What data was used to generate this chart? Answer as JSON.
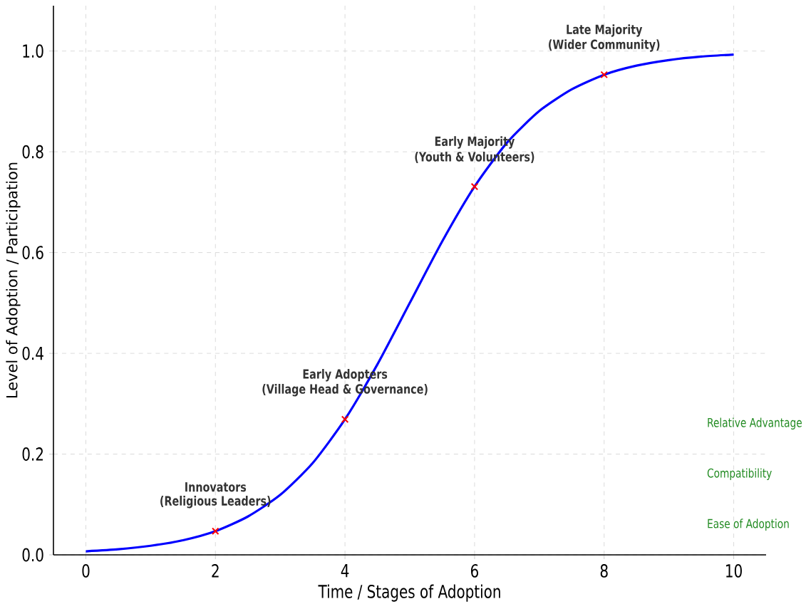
{
  "chart_data": {
    "type": "line",
    "xlabel": "Time / Stages of Adoption",
    "ylabel": "Level of Adoption / Participation",
    "xlim": [
      -0.5,
      10.5
    ],
    "ylim": [
      0,
      1.09
    ],
    "xticks": [
      0,
      2,
      4,
      6,
      8,
      10
    ],
    "yticks": [
      {
        "value": 0,
        "label": "0.0"
      },
      {
        "value": 0.2,
        "label": "0.2"
      },
      {
        "value": 0.4,
        "label": "0.4"
      },
      {
        "value": 0.6,
        "label": "0.6"
      },
      {
        "value": 0.8,
        "label": "0.8"
      },
      {
        "value": 1.0,
        "label": "1.0"
      }
    ],
    "grid": true,
    "series": [
      {
        "type": "line",
        "color": "#0000ff",
        "marker": "none",
        "line_style": "solid",
        "x": [
          0,
          0.5,
          1,
          1.5,
          2,
          2.5,
          3,
          3.5,
          4,
          4.5,
          5,
          5.5,
          6,
          6.5,
          7,
          7.5,
          8,
          8.5,
          9,
          9.5,
          10
        ],
        "values": [
          0.007,
          0.011,
          0.018,
          0.029,
          0.047,
          0.076,
          0.119,
          0.182,
          0.269,
          0.378,
          0.5,
          0.622,
          0.731,
          0.818,
          0.881,
          0.924,
          0.953,
          0.971,
          0.982,
          0.989,
          0.993
        ]
      },
      {
        "type": "scatter",
        "color": "#ff0000",
        "marker": "cross",
        "x": [
          2,
          4,
          6,
          8
        ],
        "values": [
          0.047,
          0.269,
          0.731,
          0.953
        ]
      }
    ],
    "annotations": [
      "Innovators",
      "(Religious Leaders)",
      "Early Adopters",
      "(Village Head & Governance)",
      "Early Majority",
      "(Youth & Volunteers)",
      "Late Majority",
      "(Wider Community)",
      "Relative Advantage",
      "Compatibility",
      "Ease of Adoption"
    ]
  }
}
